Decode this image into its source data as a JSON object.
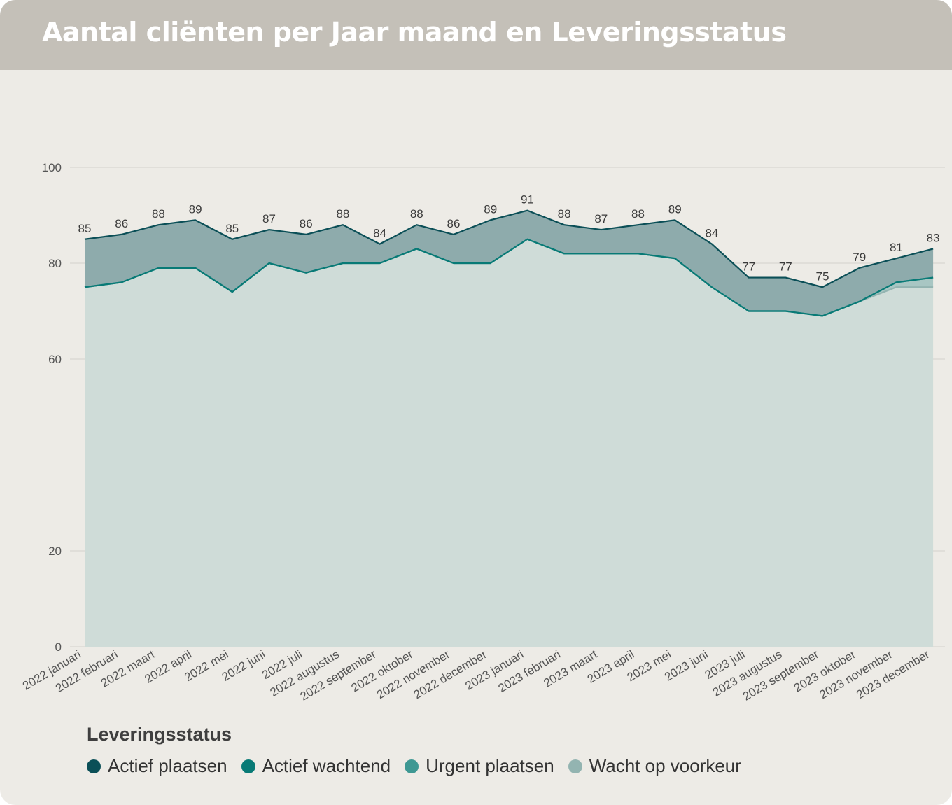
{
  "title": "Aantal cliënten per Jaar maand en Leveringsstatus",
  "legend": {
    "title": "Leveringsstatus",
    "items": [
      {
        "label": "Actief plaatsen",
        "color": "#0b4f57"
      },
      {
        "label": "Actief wachtend",
        "color": "#087a76"
      },
      {
        "label": "Urgent plaatsen",
        "color": "#3e9893"
      },
      {
        "label": "Wacht op voorkeur",
        "color": "#93b4b1"
      }
    ]
  },
  "chart_data": {
    "type": "area",
    "stacked": true,
    "title": "Aantal cliënten per Jaar maand en Leveringsstatus",
    "xlabel": "",
    "ylabel": "",
    "ylim": [
      0,
      100
    ],
    "yticks": [
      "0",
      "20",
      "60",
      "80",
      "100"
    ],
    "grid": true,
    "legend_position": "bottom-left",
    "categories": [
      "2022 januari",
      "2022 februari",
      "2022 maart",
      "2022 april",
      "2022 mei",
      "2022 juni",
      "2022 juli",
      "2022 augustus",
      "2022 september",
      "2022 oktober",
      "2022 november",
      "2022 december",
      "2023 januari",
      "2023 februari",
      "2023 maart",
      "2023 april",
      "2023 mei",
      "2023 juni",
      "2023 juli",
      "2023 augustus",
      "2023 september",
      "2023 oktober",
      "2023 november",
      "2023 december"
    ],
    "totals": [
      85,
      86,
      88,
      89,
      85,
      87,
      86,
      88,
      84,
      88,
      86,
      89,
      91,
      88,
      87,
      88,
      89,
      84,
      77,
      77,
      75,
      79,
      81,
      83
    ],
    "series": [
      {
        "name": "Wacht op voorkeur",
        "color": "#93b4b1",
        "values": [
          75,
          76,
          79,
          79,
          74,
          80,
          78,
          80,
          80,
          83,
          80,
          80,
          85,
          82,
          82,
          82,
          81,
          75,
          70,
          70,
          69,
          72,
          75,
          75
        ]
      },
      {
        "name": "Urgent plaatsen",
        "color": "#3e9893",
        "values": [
          0,
          0,
          0,
          0,
          0,
          0,
          0,
          0,
          0,
          0,
          0,
          0,
          0,
          0,
          0,
          0,
          0,
          0,
          0,
          0,
          0,
          0,
          1,
          2
        ]
      },
      {
        "name": "Actief wachtend",
        "color": "#087a76",
        "values": [
          0,
          0,
          0,
          0,
          0,
          0,
          0,
          0,
          0,
          0,
          0,
          0,
          0,
          0,
          0,
          0,
          0,
          0,
          0,
          0,
          0,
          0,
          0,
          0
        ]
      },
      {
        "name": "Actief plaatsen",
        "color": "#0b4f57",
        "values": [
          10,
          10,
          9,
          10,
          11,
          7,
          8,
          8,
          4,
          5,
          6,
          9,
          6,
          6,
          5,
          6,
          8,
          9,
          7,
          7,
          6,
          7,
          5,
          6
        ]
      }
    ]
  }
}
